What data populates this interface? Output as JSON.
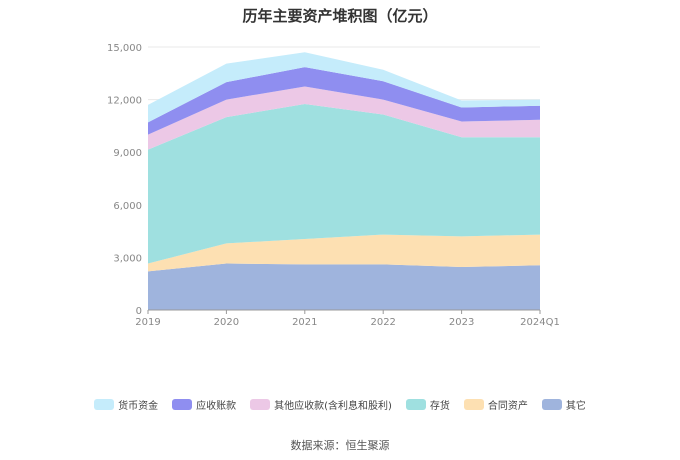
{
  "chart_data": {
    "type": "area",
    "stacked": true,
    "title": "历年主要资产堆积图（亿元）",
    "x": [
      "2019",
      "2020",
      "2021",
      "2022",
      "2023",
      "2024Q1"
    ],
    "ylim": [
      0,
      15000
    ],
    "yticks": [
      "0",
      "3,000",
      "6,000",
      "9,000",
      "12,000",
      "15,000"
    ],
    "grid": true,
    "legend_position": "bottom",
    "series": [
      {
        "name": "其它",
        "color": "#9fb4dd",
        "values": [
          2200,
          2650,
          2600,
          2600,
          2450,
          2550
        ]
      },
      {
        "name": "合同资产",
        "color": "#fde0b2",
        "values": [
          450,
          1150,
          1450,
          1700,
          1750,
          1750
        ]
      },
      {
        "name": "存货",
        "color": "#9fe0e0",
        "values": [
          6500,
          7200,
          7700,
          6850,
          5650,
          5550
        ]
      },
      {
        "name": "其他应收款(含利息和股利)",
        "color": "#ecc8e6",
        "values": [
          850,
          1000,
          1000,
          850,
          900,
          1000
        ]
      },
      {
        "name": "应收账款",
        "color": "#8f8ef0",
        "values": [
          700,
          1000,
          1100,
          1050,
          800,
          800
        ]
      },
      {
        "name": "货币资金",
        "color": "#c5ecfb",
        "values": [
          1000,
          1050,
          850,
          650,
          400,
          350
        ]
      }
    ]
  },
  "legend_order": [
    "货币资金",
    "应收账款",
    "其他应收款(含利息和股利)",
    "存货",
    "合同资产",
    "其它"
  ],
  "source": "数据来源：恒生聚源"
}
